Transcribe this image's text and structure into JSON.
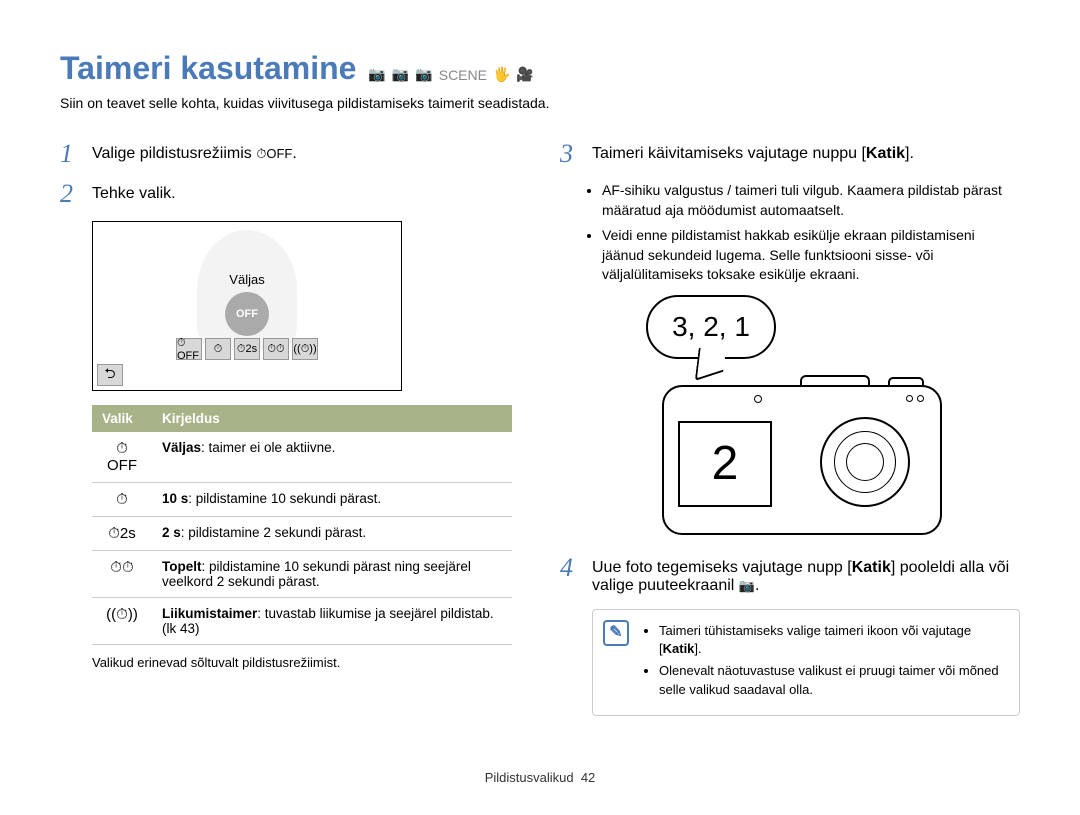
{
  "colors": {
    "accent": "#4a7bb8",
    "table_header": "#a8b38a"
  },
  "title": "Taimeri kasutamine",
  "mode_icons": [
    "📷",
    "📷",
    "📷",
    "SCENE",
    "🖐",
    "🎥"
  ],
  "subtitle": "Siin on teavet selle kohta, kuidas viivitusega pildistamiseks taimerit seadistada.",
  "left": {
    "step1": {
      "num": "1",
      "text_before": "Valige pildistusrežiimis ",
      "icon": "⏱OFF",
      "text_after": "."
    },
    "step2": {
      "num": "2",
      "text": "Tehke valik."
    },
    "screen": {
      "label": "Väljas",
      "off_text": "OFF",
      "icons": [
        "⏱OFF",
        "⏱",
        "⏱2s",
        "⏱⏱",
        "((⏱))"
      ],
      "back": "⮌"
    },
    "table": {
      "headers": [
        "Valik",
        "Kirjeldus"
      ],
      "rows": [
        {
          "icon": "⏱OFF",
          "bold": "Väljas",
          "desc": ": taimer ei ole aktiivne."
        },
        {
          "icon": "⏱",
          "bold": "10  s",
          "desc": ": pildistamine 10 sekundi pärast."
        },
        {
          "icon": "⏱2s",
          "bold": "2  s",
          "desc": ": pildistamine 2 sekundi pärast."
        },
        {
          "icon": "⏱⏱",
          "bold": "Topelt",
          "desc": ": pildistamine 10 sekundi pärast ning seejärel veelkord 2 sekundi pärast."
        },
        {
          "icon": "((⏱))",
          "bold": "Liikumistaimer",
          "desc": ": tuvastab liikumise ja seejärel pildistab. (lk 43)"
        }
      ]
    },
    "footnote": "Valikud erinevad sõltuvalt pildistusrežiimist."
  },
  "right": {
    "step3": {
      "num": "3",
      "text_before": "Taimeri käivitamiseks vajutage nuppu [",
      "bold": "Katik",
      "text_after": "]."
    },
    "step3_bullets": [
      "AF-sihiku valgustus / taimeri tuli vilgub. Kaamera pildistab pärast määratud aja möödumist automaatselt.",
      "Veidi enne pildistamist hakkab esikülje ekraan pildistamiseni jäänud sekundeid lugema. Selle funktsiooni sisse- või väljalülitamiseks toksake esikülje ekraani."
    ],
    "diagram": {
      "speech": "3, 2, 1",
      "screen": "2"
    },
    "step4": {
      "num": "4",
      "text_before": "Uue foto tegemiseks vajutage nupp [",
      "bold": "Katik",
      "text_after": "] pooleldi alla või valige puuteekraanil ",
      "icon": "📷",
      "text_end": "."
    },
    "tip": {
      "items": [
        {
          "before": "Taimeri tühistamiseks valige taimeri ikoon või vajutage [",
          "bold": "Katik",
          "after": "]."
        },
        {
          "before": "Olenevalt näotuvastuse valikust ei pruugi taimer või mõned selle valikud saadaval olla.",
          "bold": "",
          "after": ""
        }
      ]
    }
  },
  "footer": {
    "section": "Pildistusvalikud",
    "page": "42"
  }
}
